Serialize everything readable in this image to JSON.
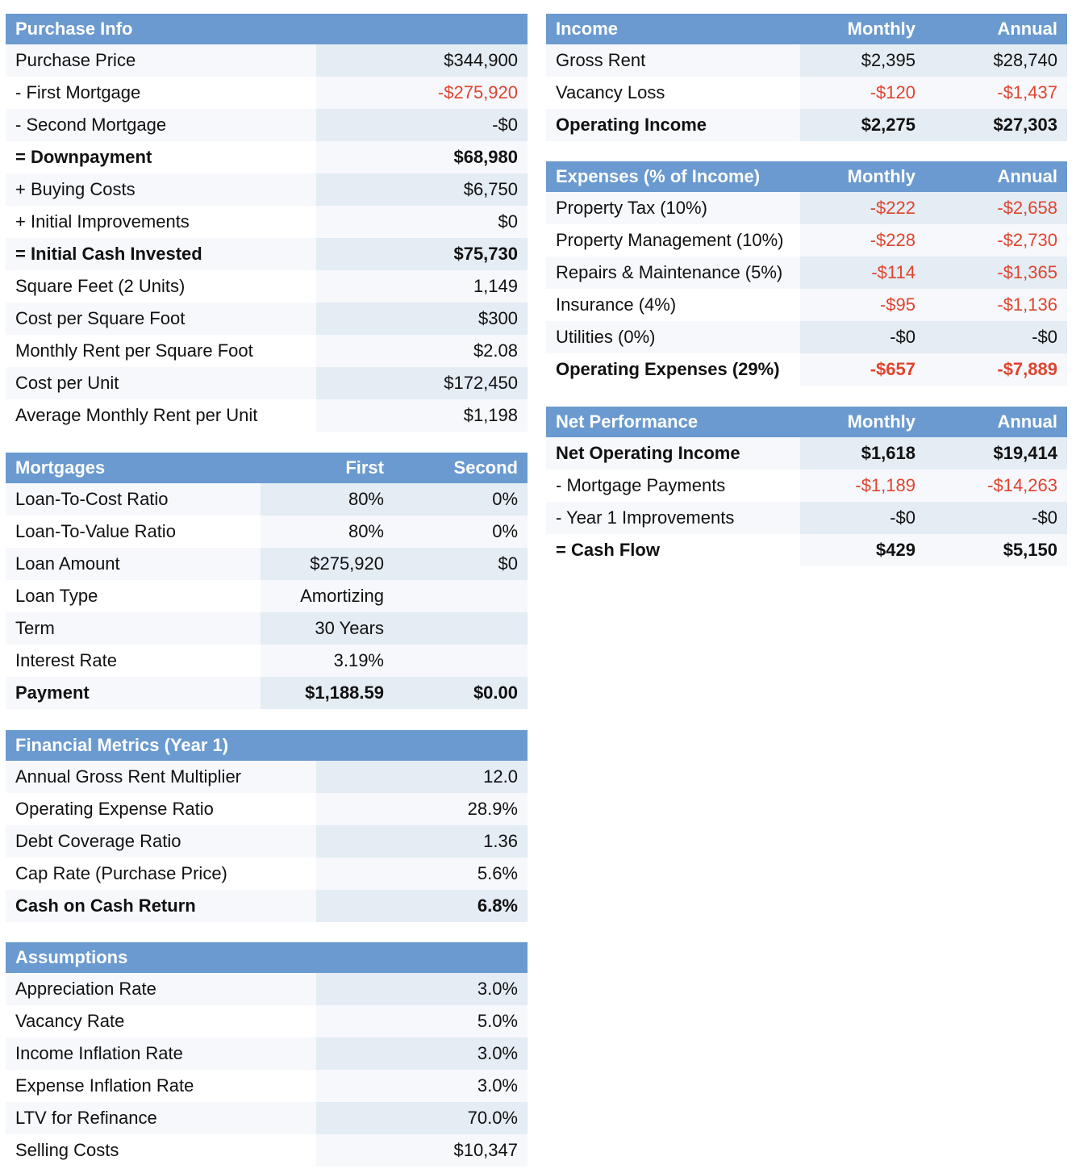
{
  "purchase_info": {
    "title": "Purchase Info",
    "columns": [],
    "rows": [
      {
        "label": "Purchase Price",
        "values": [
          "$344,900"
        ]
      },
      {
        "label": "- First Mortgage",
        "values": [
          "-$275,920"
        ],
        "neg": true
      },
      {
        "label": "- Second Mortgage",
        "values": [
          "-$0"
        ]
      },
      {
        "label": "= Downpayment",
        "values": [
          "$68,980"
        ],
        "bold": true
      },
      {
        "label": "+ Buying Costs",
        "values": [
          "$6,750"
        ]
      },
      {
        "label": "+ Initial Improvements",
        "values": [
          "$0"
        ]
      },
      {
        "label": "= Initial Cash Invested",
        "values": [
          "$75,730"
        ],
        "bold": true
      },
      {
        "label": "Square Feet (2 Units)",
        "values": [
          "1,149"
        ]
      },
      {
        "label": "Cost per Square Foot",
        "values": [
          "$300"
        ]
      },
      {
        "label": "Monthly Rent per Square Foot",
        "values": [
          "$2.08"
        ]
      },
      {
        "label": "Cost per Unit",
        "values": [
          "$172,450"
        ]
      },
      {
        "label": "Average Monthly Rent per Unit",
        "values": [
          "$1,198"
        ]
      }
    ]
  },
  "mortgages": {
    "title": "Mortgages",
    "columns": [
      "First",
      "Second"
    ],
    "rows": [
      {
        "label": "Loan-To-Cost Ratio",
        "values": [
          "80%",
          "0%"
        ]
      },
      {
        "label": "Loan-To-Value Ratio",
        "values": [
          "80%",
          "0%"
        ]
      },
      {
        "label": "Loan Amount",
        "values": [
          "$275,920",
          "$0"
        ]
      },
      {
        "label": "Loan Type",
        "values": [
          "Amortizing",
          ""
        ]
      },
      {
        "label": "Term",
        "values": [
          "30 Years",
          ""
        ]
      },
      {
        "label": "Interest Rate",
        "values": [
          "3.19%",
          ""
        ]
      },
      {
        "label": "Payment",
        "values": [
          "$1,188.59",
          "$0.00"
        ],
        "bold": true
      }
    ]
  },
  "financial_metrics": {
    "title": "Financial Metrics (Year 1)",
    "columns": [],
    "rows": [
      {
        "label": "Annual Gross Rent Multiplier",
        "values": [
          "12.0"
        ]
      },
      {
        "label": "Operating Expense Ratio",
        "values": [
          "28.9%"
        ]
      },
      {
        "label": "Debt Coverage Ratio",
        "values": [
          "1.36"
        ]
      },
      {
        "label": "Cap Rate (Purchase Price)",
        "values": [
          "5.6%"
        ]
      },
      {
        "label": "Cash on Cash Return",
        "values": [
          "6.8%"
        ],
        "bold": true
      }
    ]
  },
  "assumptions": {
    "title": "Assumptions",
    "columns": [],
    "rows": [
      {
        "label": "Appreciation Rate",
        "values": [
          "3.0%"
        ]
      },
      {
        "label": "Vacancy Rate",
        "values": [
          "5.0%"
        ]
      },
      {
        "label": "Income Inflation Rate",
        "values": [
          "3.0%"
        ]
      },
      {
        "label": "Expense Inflation Rate",
        "values": [
          "3.0%"
        ]
      },
      {
        "label": "LTV for Refinance",
        "values": [
          "70.0%"
        ]
      },
      {
        "label": "Selling Costs",
        "values": [
          "$10,347"
        ]
      }
    ]
  },
  "income": {
    "title": "Income",
    "columns": [
      "Monthly",
      "Annual"
    ],
    "rows": [
      {
        "label": "Gross Rent",
        "values": [
          "$2,395",
          "$28,740"
        ]
      },
      {
        "label": "Vacancy Loss",
        "values": [
          "-$120",
          "-$1,437"
        ],
        "neg": true
      },
      {
        "label": "Operating Income",
        "values": [
          "$2,275",
          "$27,303"
        ],
        "bold": true
      }
    ]
  },
  "expenses": {
    "title": "Expenses (% of Income)",
    "columns": [
      "Monthly",
      "Annual"
    ],
    "rows": [
      {
        "label": "Property Tax (10%)",
        "values": [
          "-$222",
          "-$2,658"
        ],
        "neg": true
      },
      {
        "label": "Property Management (10%)",
        "values": [
          "-$228",
          "-$2,730"
        ],
        "neg": true
      },
      {
        "label": "Repairs & Maintenance (5%)",
        "values": [
          "-$114",
          "-$1,365"
        ],
        "neg": true
      },
      {
        "label": "Insurance (4%)",
        "values": [
          "-$95",
          "-$1,136"
        ],
        "neg": true
      },
      {
        "label": "Utilities (0%)",
        "values": [
          "-$0",
          "-$0"
        ]
      },
      {
        "label": "Operating Expenses (29%)",
        "values": [
          "-$657",
          "-$7,889"
        ],
        "neg": true,
        "bold": true
      }
    ]
  },
  "net_performance": {
    "title": "Net Performance",
    "columns": [
      "Monthly",
      "Annual"
    ],
    "rows": [
      {
        "label": "Net Operating Income",
        "values": [
          "$1,618",
          "$19,414"
        ],
        "bold": true
      },
      {
        "label": "- Mortgage Payments",
        "values": [
          "-$1,189",
          "-$14,263"
        ],
        "neg": true
      },
      {
        "label": "- Year 1 Improvements",
        "values": [
          "-$0",
          "-$0"
        ]
      },
      {
        "label": "= Cash Flow",
        "values": [
          "$429",
          "$5,150"
        ],
        "bold": true
      }
    ]
  },
  "colors": {
    "header": "#6a9acf",
    "negative": "#e0442e",
    "stripe": "#e4ecf4"
  }
}
